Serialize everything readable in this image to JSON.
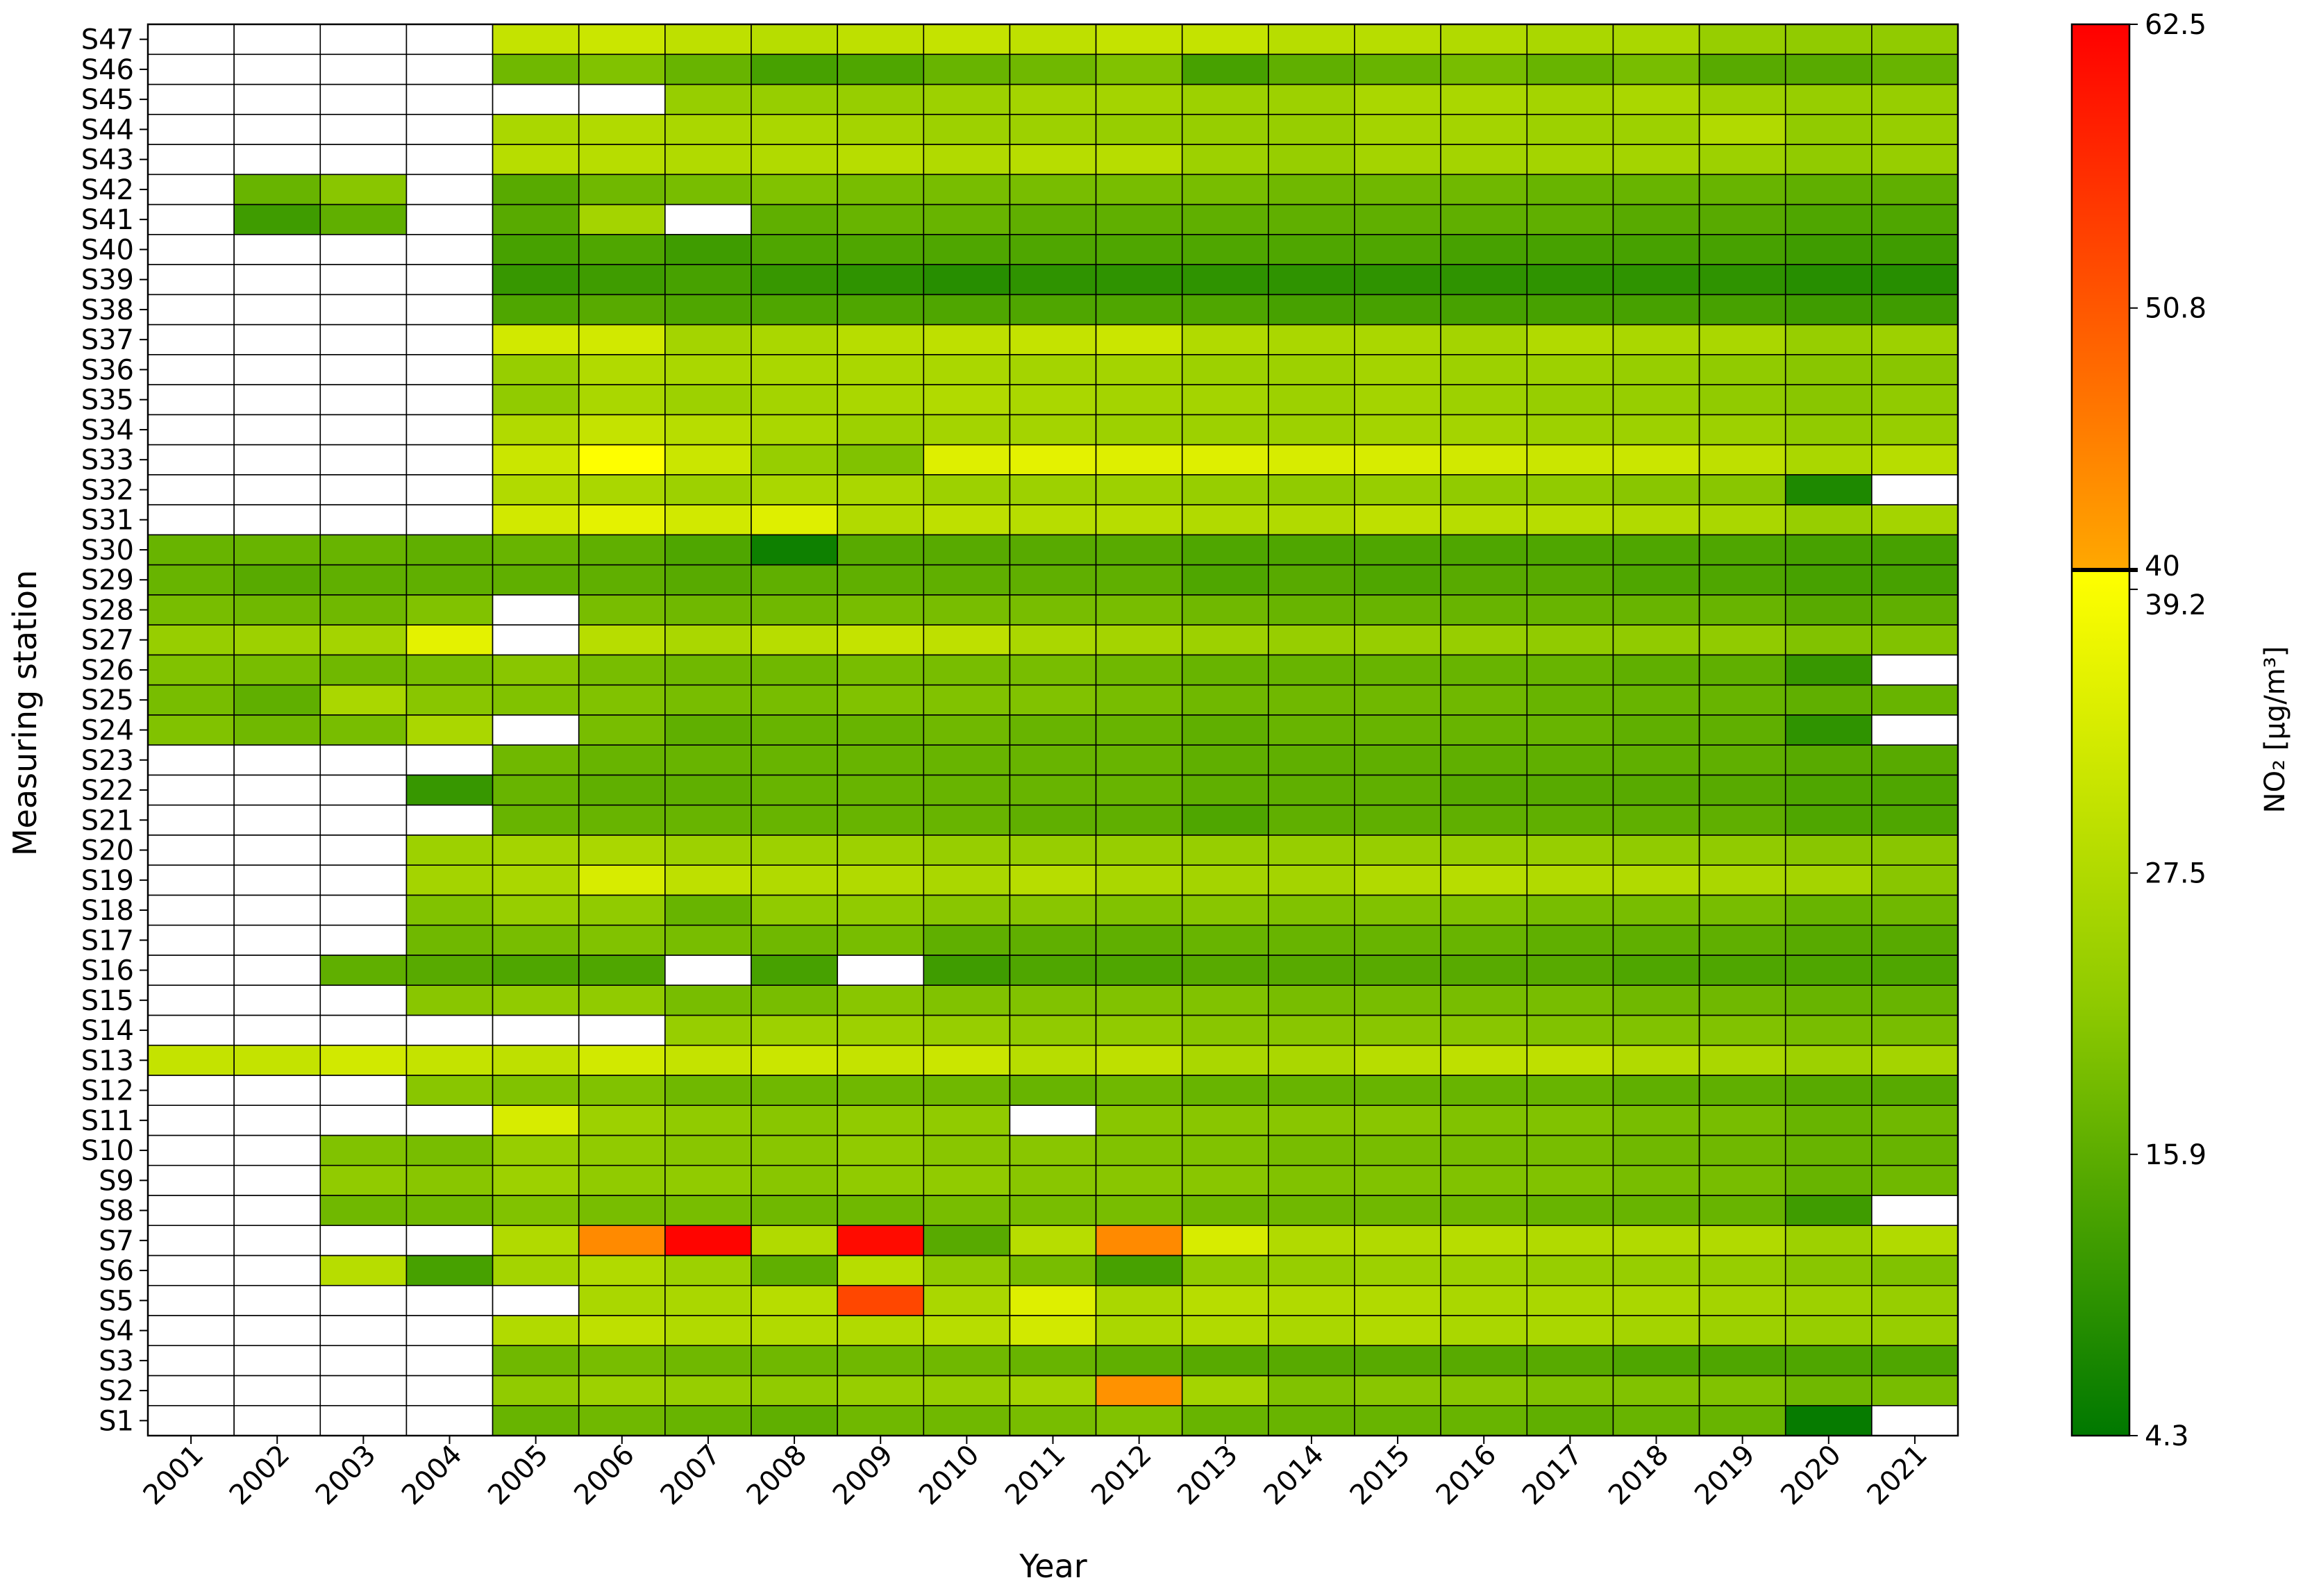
{
  "chart_data": {
    "type": "heatmap",
    "title": "",
    "xlabel": "Year",
    "ylabel": "Measuring station",
    "x": [
      "2001",
      "2002",
      "2003",
      "2004",
      "2005",
      "2006",
      "2007",
      "2008",
      "2009",
      "2010",
      "2011",
      "2012",
      "2013",
      "2014",
      "2015",
      "2016",
      "2017",
      "2018",
      "2019",
      "2020",
      "2021"
    ],
    "y": [
      "S1",
      "S2",
      "S3",
      "S4",
      "S5",
      "S6",
      "S7",
      "S8",
      "S9",
      "S10",
      "S11",
      "S12",
      "S13",
      "S14",
      "S15",
      "S16",
      "S17",
      "S18",
      "S19",
      "S20",
      "S21",
      "S22",
      "S23",
      "S24",
      "S25",
      "S26",
      "S27",
      "S28",
      "S29",
      "S30",
      "S31",
      "S32",
      "S33",
      "S34",
      "S35",
      "S36",
      "S37",
      "S38",
      "S39",
      "S40",
      "S41",
      "S42",
      "S43",
      "S44",
      "S45",
      "S46",
      "S47"
    ],
    "rows": {
      "S1": [
        null,
        null,
        null,
        null,
        17,
        18,
        17,
        16,
        18,
        18,
        19,
        20,
        17,
        17,
        17,
        17,
        16,
        17,
        17,
        5,
        null
      ],
      "S2": [
        null,
        null,
        null,
        null,
        22,
        24,
        23,
        22,
        23,
        23,
        25,
        43,
        25,
        20,
        21,
        21,
        20,
        20,
        20,
        18,
        19
      ],
      "S3": [
        null,
        null,
        null,
        null,
        18,
        19,
        18,
        18,
        18,
        18,
        17,
        16,
        15,
        15,
        15,
        15,
        15,
        14,
        14,
        14,
        14
      ],
      "S4": [
        null,
        null,
        null,
        null,
        27,
        29,
        27,
        27,
        27,
        28,
        32,
        26,
        27,
        26,
        27,
        26,
        26,
        25,
        24,
        23,
        23
      ],
      "S5": [
        null,
        null,
        null,
        null,
        null,
        26,
        26,
        28,
        53,
        26,
        34,
        26,
        28,
        27,
        27,
        26,
        26,
        26,
        25,
        24,
        23
      ],
      "S6": [
        null,
        null,
        28,
        13,
        25,
        27,
        24,
        16,
        28,
        22,
        19,
        13,
        22,
        23,
        24,
        24,
        23,
        23,
        23,
        21,
        20
      ],
      "S7": [
        null,
        null,
        null,
        null,
        27,
        44,
        62,
        27,
        61,
        15,
        28,
        44,
        33,
        27,
        27,
        28,
        27,
        27,
        27,
        24,
        27
      ],
      "S8": [
        null,
        null,
        18,
        18,
        20,
        19,
        19,
        18,
        18,
        19,
        19,
        19,
        18,
        18,
        18,
        18,
        17,
        17,
        17,
        12,
        null
      ],
      "S9": [
        null,
        null,
        22,
        21,
        24,
        22,
        22,
        21,
        22,
        22,
        21,
        21,
        21,
        20,
        20,
        20,
        20,
        19,
        19,
        17,
        18
      ],
      "S10": [
        null,
        null,
        20,
        19,
        23,
        22,
        21,
        21,
        22,
        21,
        21,
        20,
        20,
        19,
        19,
        19,
        19,
        18,
        18,
        17,
        17
      ],
      "S11": [
        null,
        null,
        null,
        null,
        33,
        24,
        22,
        21,
        22,
        22,
        null,
        21,
        21,
        21,
        21,
        20,
        20,
        19,
        19,
        17,
        18
      ],
      "S12": [
        null,
        null,
        null,
        21,
        20,
        20,
        18,
        18,
        18,
        18,
        17,
        18,
        17,
        17,
        17,
        17,
        17,
        16,
        16,
        15,
        15
      ],
      "S13": [
        30,
        30,
        32,
        30,
        29,
        32,
        30,
        31,
        30,
        31,
        28,
        29,
        26,
        26,
        28,
        29,
        29,
        27,
        26,
        24,
        25
      ],
      "S14": [
        null,
        null,
        null,
        null,
        null,
        null,
        23,
        24,
        24,
        23,
        22,
        22,
        21,
        21,
        21,
        21,
        20,
        20,
        20,
        19,
        19
      ],
      "S15": [
        null,
        null,
        null,
        21,
        22,
        22,
        19,
        19,
        21,
        20,
        20,
        20,
        20,
        19,
        19,
        19,
        19,
        18,
        18,
        17,
        17
      ],
      "S16": [
        null,
        null,
        16,
        15,
        14,
        14,
        null,
        13,
        null,
        12,
        14,
        14,
        15,
        15,
        15,
        15,
        15,
        14,
        14,
        14,
        14
      ],
      "S17": [
        null,
        null,
        null,
        18,
        19,
        20,
        19,
        18,
        19,
        16,
        16,
        16,
        17,
        17,
        17,
        17,
        16,
        16,
        16,
        15,
        15
      ],
      "S18": [
        null,
        null,
        null,
        20,
        23,
        22,
        17,
        22,
        22,
        21,
        21,
        20,
        21,
        20,
        20,
        20,
        19,
        19,
        19,
        17,
        18
      ],
      "S19": [
        null,
        null,
        null,
        25,
        26,
        33,
        29,
        27,
        27,
        26,
        28,
        26,
        25,
        25,
        27,
        28,
        27,
        27,
        26,
        25,
        21
      ],
      "S20": [
        null,
        null,
        null,
        24,
        25,
        26,
        24,
        24,
        24,
        23,
        23,
        23,
        23,
        23,
        23,
        23,
        23,
        22,
        22,
        21,
        21
      ],
      "S21": [
        null,
        null,
        null,
        null,
        17,
        17,
        17,
        17,
        17,
        17,
        16,
        16,
        14,
        16,
        16,
        16,
        16,
        16,
        16,
        14,
        14
      ],
      "S22": [
        null,
        null,
        null,
        11,
        17,
        16,
        16,
        17,
        17,
        17,
        17,
        17,
        16,
        16,
        16,
        15,
        15,
        15,
        15,
        14,
        14
      ],
      "S23": [
        null,
        null,
        null,
        null,
        18,
        17,
        17,
        17,
        17,
        17,
        17,
        17,
        16,
        16,
        16,
        16,
        16,
        16,
        16,
        15,
        15
      ],
      "S24": [
        20,
        18,
        19,
        26,
        null,
        19,
        16,
        17,
        17,
        18,
        17,
        17,
        16,
        17,
        17,
        17,
        17,
        16,
        16,
        10,
        null
      ],
      "S25": [
        19,
        16,
        26,
        21,
        20,
        20,
        19,
        19,
        20,
        20,
        20,
        19,
        18,
        18,
        18,
        18,
        17,
        17,
        17,
        16,
        17
      ],
      "S26": [
        20,
        19,
        18,
        19,
        21,
        19,
        18,
        18,
        19,
        19,
        19,
        18,
        17,
        17,
        17,
        17,
        17,
        16,
        16,
        11,
        null
      ],
      "S27": [
        23,
        24,
        25,
        35,
        null,
        28,
        26,
        28,
        30,
        29,
        26,
        25,
        24,
        23,
        23,
        23,
        22,
        22,
        22,
        20,
        20
      ],
      "S28": [
        19,
        18,
        18,
        20,
        null,
        19,
        18,
        18,
        19,
        19,
        19,
        19,
        18,
        17,
        17,
        17,
        17,
        17,
        17,
        15,
        16
      ],
      "S29": [
        17,
        15,
        16,
        16,
        16,
        16,
        15,
        16,
        16,
        16,
        16,
        16,
        14,
        15,
        14,
        15,
        15,
        14,
        14,
        13,
        13
      ],
      "S30": [
        17,
        17,
        17,
        16,
        17,
        16,
        14,
        6,
        15,
        15,
        15,
        15,
        14,
        14,
        14,
        14,
        14,
        14,
        14,
        13,
        13
      ],
      "S31": [
        null,
        null,
        null,
        null,
        32,
        35,
        32,
        34,
        27,
        29,
        28,
        28,
        27,
        27,
        29,
        28,
        28,
        27,
        26,
        23,
        25
      ],
      "S32": [
        null,
        null,
        null,
        null,
        27,
        26,
        24,
        26,
        26,
        24,
        24,
        24,
        23,
        22,
        23,
        22,
        22,
        21,
        21,
        8,
        null
      ],
      "S33": [
        null,
        null,
        null,
        null,
        31,
        39,
        31,
        23,
        20,
        34,
        35,
        34,
        34,
        33,
        33,
        32,
        31,
        31,
        29,
        26,
        28
      ],
      "S34": [
        null,
        null,
        null,
        null,
        27,
        30,
        28,
        26,
        24,
        25,
        25,
        24,
        24,
        24,
        25,
        25,
        24,
        24,
        24,
        22,
        23
      ],
      "S35": [
        null,
        null,
        null,
        null,
        22,
        26,
        24,
        25,
        26,
        27,
        26,
        25,
        25,
        24,
        25,
        24,
        23,
        23,
        22,
        21,
        22
      ],
      "S36": [
        null,
        null,
        null,
        null,
        23,
        27,
        26,
        26,
        26,
        26,
        25,
        25,
        24,
        24,
        25,
        24,
        24,
        23,
        22,
        21,
        21
      ],
      "S37": [
        null,
        null,
        null,
        null,
        32,
        32,
        25,
        26,
        28,
        29,
        30,
        31,
        27,
        26,
        26,
        25,
        27,
        26,
        26,
        23,
        24
      ],
      "S38": [
        null,
        null,
        null,
        null,
        14,
        15,
        14,
        14,
        14,
        14,
        14,
        14,
        14,
        13,
        13,
        13,
        13,
        13,
        13,
        12,
        12
      ],
      "S39": [
        null,
        null,
        null,
        null,
        11,
        12,
        13,
        11,
        10,
        9,
        10,
        10,
        10,
        10,
        10,
        10,
        10,
        10,
        10,
        9,
        9
      ],
      "S40": [
        null,
        null,
        null,
        null,
        13,
        14,
        12,
        14,
        14,
        14,
        14,
        14,
        14,
        14,
        14,
        13,
        13,
        13,
        13,
        12,
        12
      ],
      "S41": [
        null,
        12,
        16,
        null,
        15,
        25,
        null,
        16,
        17,
        17,
        16,
        16,
        16,
        16,
        16,
        16,
        16,
        15,
        15,
        14,
        14
      ],
      "S42": [
        null,
        17,
        21,
        null,
        15,
        18,
        19,
        20,
        19,
        19,
        19,
        19,
        19,
        18,
        18,
        18,
        17,
        17,
        17,
        16,
        16
      ],
      "S43": [
        null,
        null,
        null,
        null,
        28,
        28,
        27,
        27,
        28,
        27,
        28,
        28,
        24,
        23,
        25,
        25,
        25,
        25,
        24,
        22,
        23
      ],
      "S44": [
        null,
        null,
        null,
        null,
        26,
        27,
        26,
        26,
        25,
        24,
        24,
        23,
        23,
        23,
        25,
        25,
        24,
        24,
        27,
        22,
        23
      ],
      "S45": [
        null,
        null,
        null,
        null,
        null,
        null,
        23,
        23,
        23,
        24,
        25,
        25,
        24,
        24,
        26,
        26,
        25,
        26,
        24,
        23,
        23
      ],
      "S46": [
        null,
        null,
        null,
        null,
        18,
        20,
        17,
        13,
        14,
        17,
        18,
        20,
        13,
        16,
        17,
        19,
        17,
        19,
        15,
        15,
        17
      ],
      "S47": [
        null,
        null,
        null,
        null,
        30,
        31,
        29,
        28,
        29,
        30,
        29,
        30,
        30,
        28,
        28,
        27,
        26,
        26,
        23,
        22,
        22
      ]
    },
    "colorbar": {
      "label": "NO₂ [µg/m³]",
      "min": 4.3,
      "max": 62.5,
      "ticks": [
        "4.3",
        "15.9",
        "27.5",
        "39.2",
        "50.8",
        "62.5"
      ],
      "threshold": 40,
      "threshold_label": "40",
      "colors": {
        "dark_green": "#007800",
        "yellow_green": "#a0d000",
        "yellow": "#ffff00",
        "orange": "#ff9800",
        "red": "#ff0000",
        "threshold_line": "#000000"
      }
    }
  }
}
